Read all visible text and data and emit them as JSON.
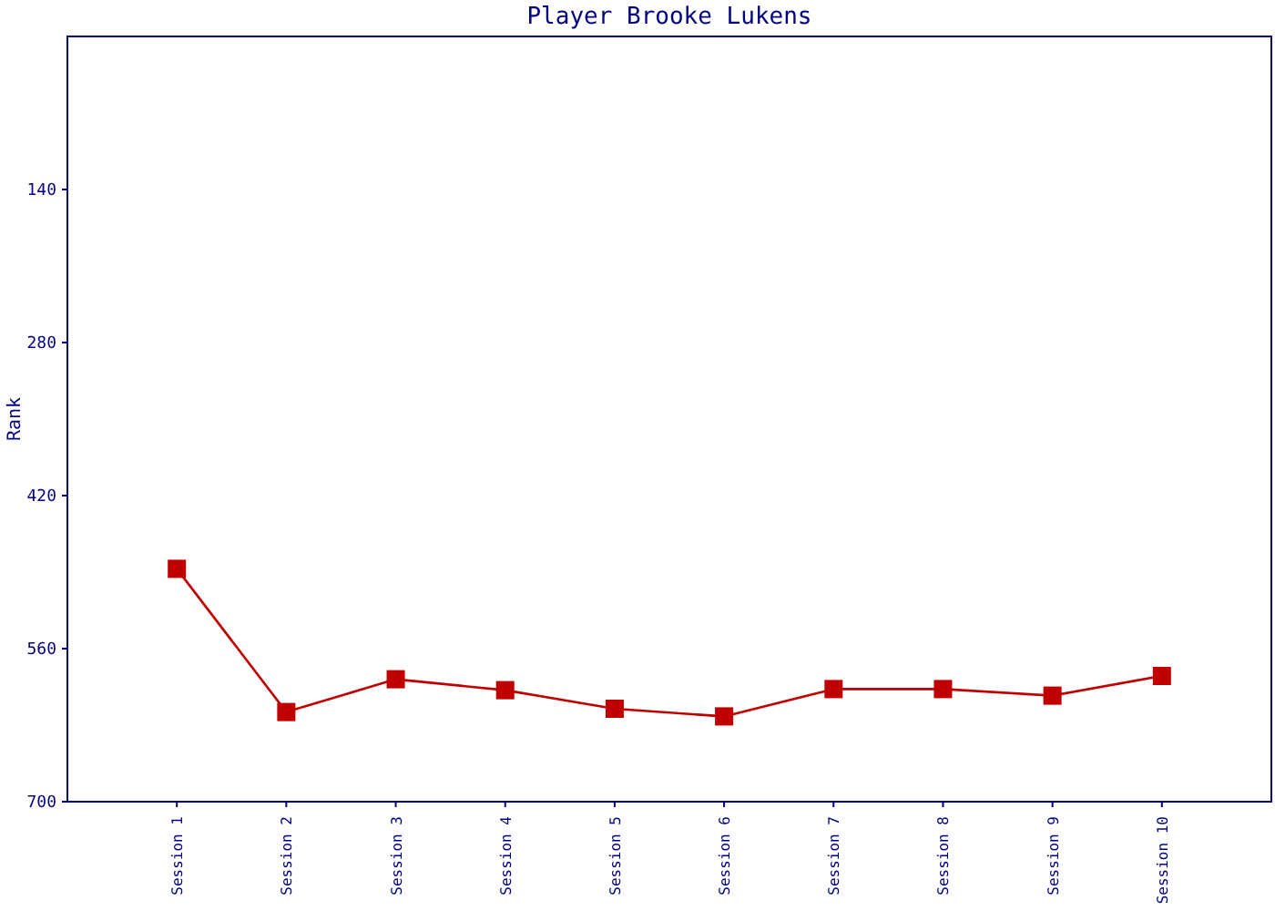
{
  "chart_data": {
    "type": "line",
    "title": "Player Brooke Lukens",
    "ylabel": "Rank",
    "categories": [
      "Session 1",
      "Session 2",
      "Session 3",
      "Session 4",
      "Session 5",
      "Session 6",
      "Session 7",
      "Session 8",
      "Session 9",
      "Session 10"
    ],
    "series": [
      {
        "color": "#c00000",
        "values": [
          487,
          618,
          588,
          598,
          615,
          622,
          597,
          597,
          603,
          585
        ]
      }
    ],
    "ylim": [
      700,
      0
    ],
    "yticks": [
      140,
      280,
      420,
      560,
      700
    ],
    "marker": "square",
    "line_style": "solid"
  }
}
